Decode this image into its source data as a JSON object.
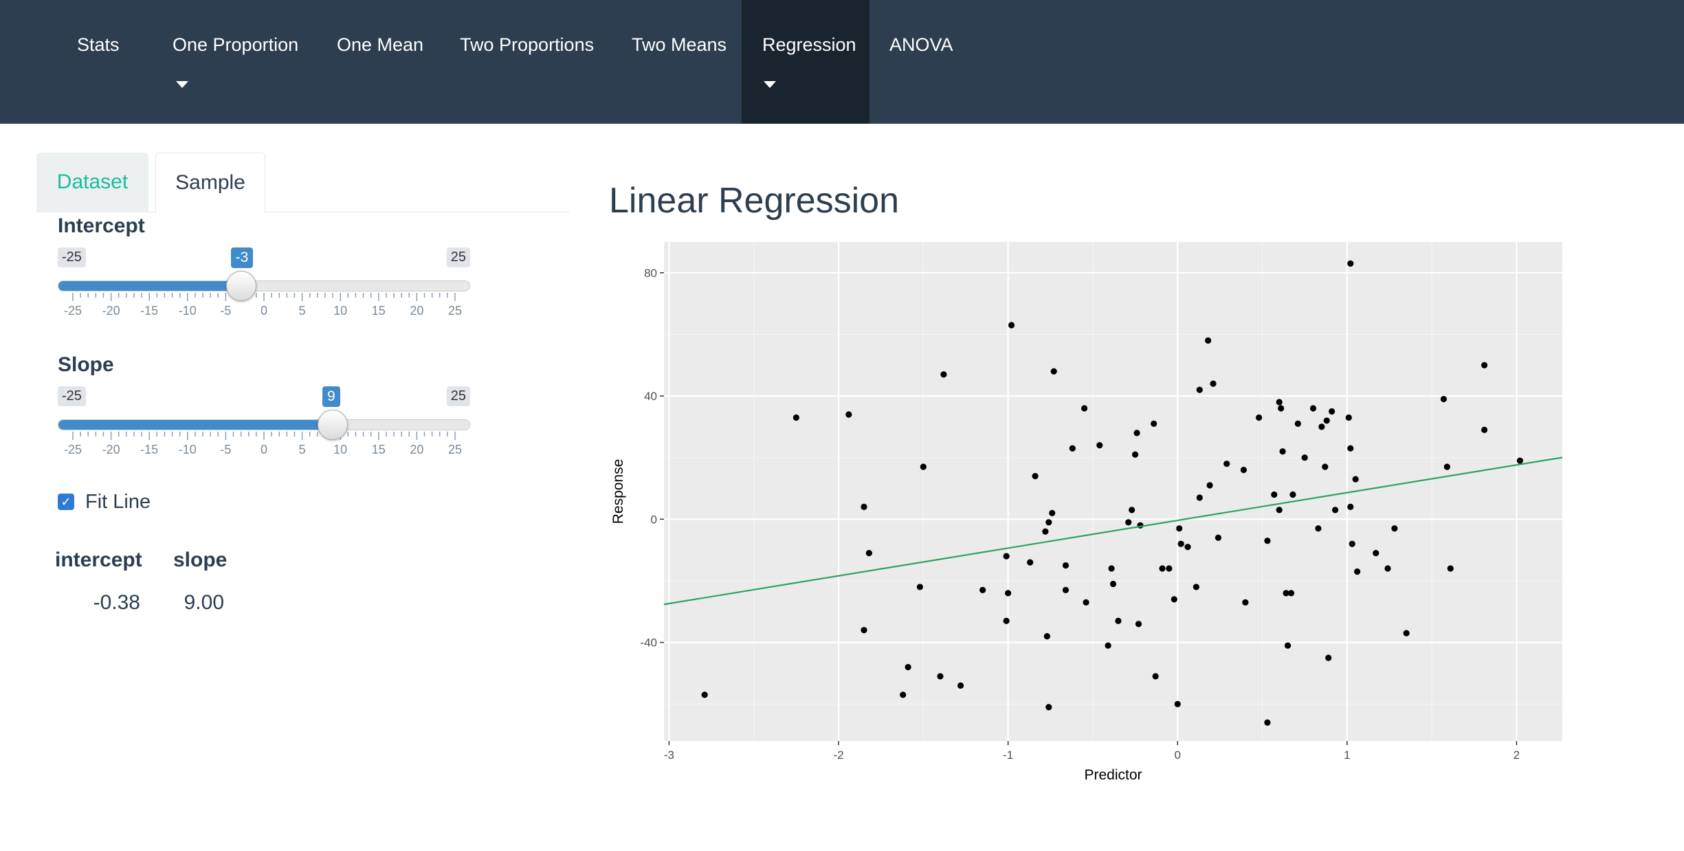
{
  "nav": {
    "items": [
      {
        "label": "Stats",
        "caret": false,
        "active": false
      },
      {
        "label": "One Proportion",
        "caret": true,
        "active": false
      },
      {
        "label": "One Mean",
        "caret": false,
        "active": false
      },
      {
        "label": "Two Proportions",
        "caret": false,
        "active": false
      },
      {
        "label": "Two Means",
        "caret": false,
        "active": false
      },
      {
        "label": "Regression",
        "caret": true,
        "active": true
      },
      {
        "label": "ANOVA",
        "caret": false,
        "active": false
      }
    ]
  },
  "tabs": {
    "dataset": "Dataset",
    "sample": "Sample",
    "active": "Sample"
  },
  "intercept_slider": {
    "label": "Intercept",
    "min": -25,
    "max": 25,
    "value": -3,
    "min_label": "-25",
    "max_label": "25",
    "value_label": "-3",
    "ticks": [
      "-25",
      "-20",
      "-15",
      "-10",
      "-5",
      "0",
      "5",
      "10",
      "15",
      "20",
      "25"
    ]
  },
  "slope_slider": {
    "label": "Slope",
    "min": -25,
    "max": 25,
    "value": 9,
    "min_label": "-25",
    "max_label": "25",
    "value_label": "9",
    "ticks": [
      "-25",
      "-20",
      "-15",
      "-10",
      "-5",
      "0",
      "5",
      "10",
      "15",
      "20",
      "25"
    ]
  },
  "fit_line": {
    "label": "Fit Line",
    "checked": true
  },
  "coef_table": {
    "headers": [
      "intercept",
      "slope"
    ],
    "values": [
      "-0.38",
      "9.00"
    ]
  },
  "colors": {
    "navbar": "#2c3e50",
    "navbar_active": "#1a242f",
    "accent_green": "#18bc9c",
    "slider_blue": "#428bca",
    "fit_line": "#2ca25f",
    "panel_bg": "#ebebeb"
  },
  "plot": {
    "title": "Linear Regression"
  },
  "chart_data": {
    "type": "scatter",
    "xlabel": "Predictor",
    "ylabel": "Response",
    "xlim": [
      -3.03,
      2.27
    ],
    "ylim": [
      -72,
      90
    ],
    "xticks": [
      -3,
      -2,
      -1,
      0,
      1,
      2
    ],
    "yticks": [
      -40,
      0,
      40,
      80
    ],
    "xtick_labels": [
      "-3",
      "-2",
      "-1",
      "0",
      "1",
      "2"
    ],
    "ytick_labels": [
      "-40",
      "0",
      "40",
      "80"
    ],
    "grid": true,
    "fit_line": {
      "intercept": -0.38,
      "slope": 9.0
    },
    "points": [
      [
        -2.79,
        -57
      ],
      [
        -2.25,
        33
      ],
      [
        -1.94,
        34
      ],
      [
        -1.85,
        4
      ],
      [
        -1.82,
        -11
      ],
      [
        -1.85,
        -36
      ],
      [
        -1.62,
        -57
      ],
      [
        -1.59,
        -48
      ],
      [
        -1.52,
        -22
      ],
      [
        -1.5,
        17
      ],
      [
        -1.4,
        -51
      ],
      [
        -1.38,
        47
      ],
      [
        -1.28,
        -54
      ],
      [
        -1.15,
        -23
      ],
      [
        -1.01,
        -33
      ],
      [
        -1.01,
        -12
      ],
      [
        -1.0,
        -24
      ],
      [
        -0.98,
        63
      ],
      [
        -0.87,
        -14
      ],
      [
        -0.84,
        14
      ],
      [
        -0.78,
        -4
      ],
      [
        -0.77,
        -38
      ],
      [
        -0.76,
        -1
      ],
      [
        -0.76,
        -61
      ],
      [
        -0.74,
        2
      ],
      [
        -0.73,
        48
      ],
      [
        -0.66,
        -15
      ],
      [
        -0.66,
        -23
      ],
      [
        -0.62,
        23
      ],
      [
        -0.55,
        36
      ],
      [
        -0.54,
        -27
      ],
      [
        -0.46,
        24
      ],
      [
        -0.41,
        -41
      ],
      [
        -0.39,
        -16
      ],
      [
        -0.38,
        -21
      ],
      [
        -0.35,
        -33
      ],
      [
        -0.29,
        -1
      ],
      [
        -0.27,
        3
      ],
      [
        -0.25,
        21
      ],
      [
        -0.24,
        28
      ],
      [
        -0.23,
        -34
      ],
      [
        -0.22,
        -2
      ],
      [
        -0.14,
        31
      ],
      [
        -0.13,
        -51
      ],
      [
        -0.09,
        -16
      ],
      [
        -0.05,
        -16
      ],
      [
        -0.02,
        -26
      ],
      [
        0.0,
        -60
      ],
      [
        0.01,
        -3
      ],
      [
        0.02,
        -8
      ],
      [
        0.06,
        -9
      ],
      [
        0.11,
        -22
      ],
      [
        0.13,
        7
      ],
      [
        0.13,
        42
      ],
      [
        0.18,
        58
      ],
      [
        0.19,
        11
      ],
      [
        0.21,
        44
      ],
      [
        0.24,
        -6
      ],
      [
        0.29,
        18
      ],
      [
        0.39,
        16
      ],
      [
        0.4,
        -27
      ],
      [
        0.48,
        33
      ],
      [
        0.53,
        -66
      ],
      [
        0.53,
        -7
      ],
      [
        0.57,
        8
      ],
      [
        0.6,
        38
      ],
      [
        0.6,
        3
      ],
      [
        0.61,
        36
      ],
      [
        0.62,
        22
      ],
      [
        0.64,
        -24
      ],
      [
        0.65,
        -41
      ],
      [
        0.67,
        -24
      ],
      [
        0.68,
        8
      ],
      [
        0.71,
        31
      ],
      [
        0.75,
        20
      ],
      [
        0.8,
        36
      ],
      [
        0.83,
        -3
      ],
      [
        0.85,
        30
      ],
      [
        0.87,
        17
      ],
      [
        0.88,
        32
      ],
      [
        0.89,
        -45
      ],
      [
        0.91,
        35
      ],
      [
        0.93,
        3
      ],
      [
        1.01,
        33
      ],
      [
        1.02,
        23
      ],
      [
        1.02,
        4
      ],
      [
        1.03,
        -8
      ],
      [
        1.05,
        13
      ],
      [
        1.06,
        -17
      ],
      [
        1.02,
        83
      ],
      [
        1.17,
        -11
      ],
      [
        1.24,
        -16
      ],
      [
        1.28,
        -3
      ],
      [
        1.35,
        -37
      ],
      [
        1.57,
        39
      ],
      [
        1.59,
        17
      ],
      [
        1.61,
        -16
      ],
      [
        1.81,
        29
      ],
      [
        1.81,
        50
      ],
      [
        2.02,
        19
      ]
    ]
  }
}
